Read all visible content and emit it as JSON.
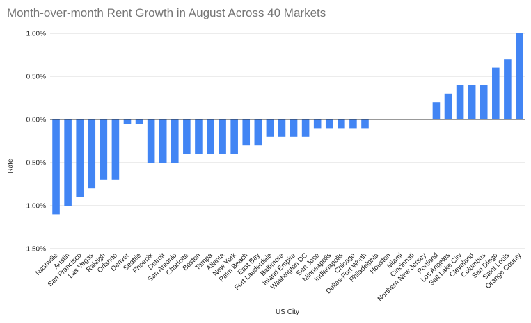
{
  "chart_data": {
    "type": "bar",
    "title": "Month-over-month Rent Growth in August Across 40 Markets",
    "xlabel": "US City",
    "ylabel": "Rate",
    "ylim": [
      -1.5,
      1.0
    ],
    "yticks": [
      "1.00%",
      "0.50%",
      "0.00%",
      "-0.50%",
      "-1.00%",
      "-1.50%"
    ],
    "ytick_values": [
      1.0,
      0.5,
      0.0,
      -0.5,
      -1.0,
      -1.5
    ],
    "grid": true,
    "legend": "none",
    "bar_color": "#4285f4",
    "categories": [
      "Nashville",
      "Austin",
      "San Francisco",
      "Las Vegas",
      "Raleigh",
      "Orlando",
      "Denver",
      "Seattle",
      "Phoenix",
      "Detroit",
      "San Antonio",
      "Charlotte",
      "Boston",
      "Tampa",
      "Atlanta",
      "New York",
      "Palm Beach",
      "East Bay",
      "Fort Lauderdale",
      "Baltimore",
      "Inland Empire",
      "Washington DC",
      "San Jose",
      "Minneapolis",
      "Indianapolis",
      "Chicago",
      "Dallas-Fort Worth",
      "Philadelphia",
      "Houston",
      "Miami",
      "Cincinnati",
      "Northern New Jersey",
      "Portland",
      "Los Angeles",
      "Salt Lake City",
      "Cleveland",
      "Columbus",
      "San Diego",
      "Saint Louis",
      "Orange County"
    ],
    "values": [
      -1.1,
      -1.0,
      -0.9,
      -0.8,
      -0.7,
      -0.7,
      -0.05,
      -0.05,
      -0.5,
      -0.5,
      -0.5,
      -0.4,
      -0.4,
      -0.4,
      -0.4,
      -0.4,
      -0.3,
      -0.3,
      -0.2,
      -0.2,
      -0.2,
      -0.2,
      -0.1,
      -0.1,
      -0.1,
      -0.1,
      -0.1,
      0.0,
      0.0,
      0.0,
      0.0,
      0.0,
      0.2,
      0.3,
      0.4,
      0.4,
      0.4,
      0.6,
      0.7,
      1.0
    ]
  }
}
